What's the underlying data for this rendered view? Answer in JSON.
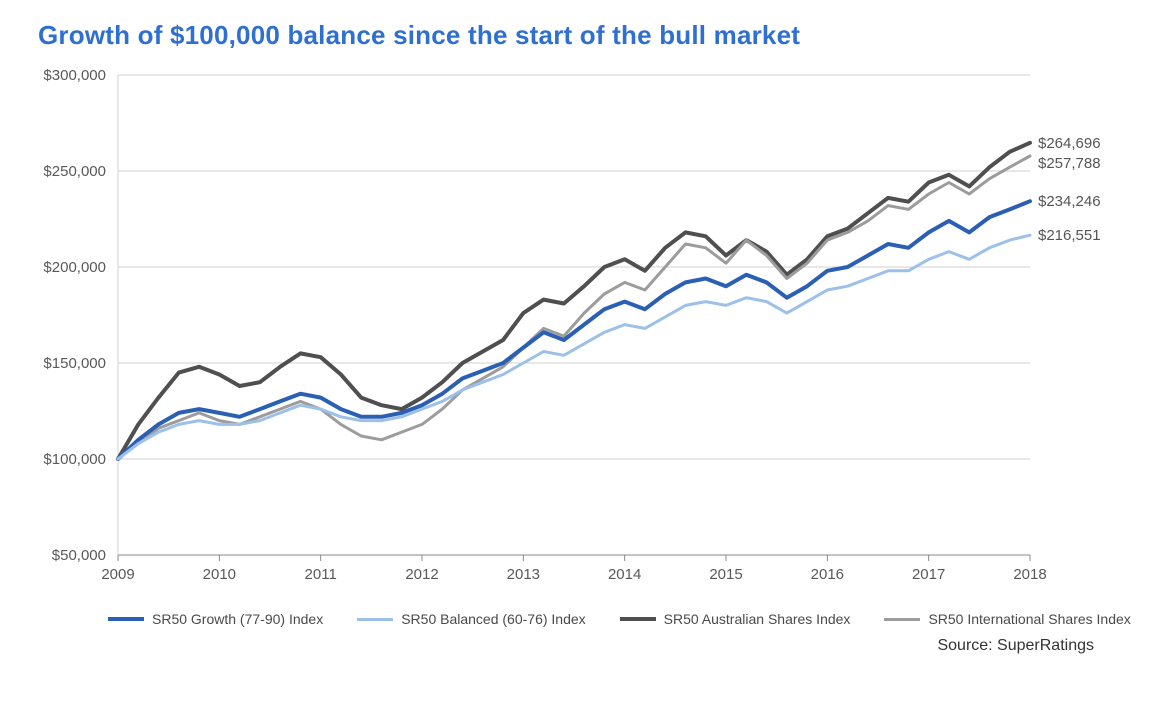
{
  "title": "Growth of $100,000 balance since the start of the bull market",
  "title_color": "#2f6fd1",
  "title_fontsize": 26,
  "source": "Source: SuperRatings",
  "chart": {
    "type": "line",
    "background_color": "#ffffff",
    "grid_color": "#d0d0d0",
    "axis_line_color": "#888888",
    "x": {
      "years": [
        2009,
        2010,
        2011,
        2012,
        2013,
        2014,
        2015,
        2016,
        2017,
        2018
      ],
      "labels": [
        "2009",
        "2010",
        "2011",
        "2012",
        "2013",
        "2014",
        "2015",
        "2016",
        "2017",
        "2018"
      ],
      "label_fontsize": 15
    },
    "y": {
      "min": 50000,
      "max": 300000,
      "step": 50000,
      "labels": [
        "$50,000",
        "$100,000",
        "$150,000",
        "$200,000",
        "$250,000",
        "$300,000"
      ],
      "label_fontsize": 15
    },
    "line_width": 3,
    "thick_line_width": 4,
    "series": [
      {
        "id": "aus_shares",
        "name": "SR50 Australian Shares Index",
        "color": "#4f4f4f",
        "width": 4,
        "end_label": "$264,696",
        "end_value": 264696,
        "values": [
          100000,
          118000,
          132000,
          145000,
          148000,
          144000,
          138000,
          140000,
          148000,
          155000,
          153000,
          144000,
          132000,
          128000,
          126000,
          132000,
          140000,
          150000,
          156000,
          162000,
          176000,
          183000,
          181000,
          190000,
          200000,
          204000,
          198000,
          210000,
          218000,
          216000,
          206000,
          214000,
          208000,
          196000,
          204000,
          216000,
          220000,
          228000,
          236000,
          234000,
          244000,
          248000,
          242000,
          252000,
          260000,
          264696
        ]
      },
      {
        "id": "intl_shares",
        "name": "SR50 International Shares Index",
        "color": "#9c9c9c",
        "width": 3,
        "end_label": "$257,788",
        "end_value": 257788,
        "values": [
          100000,
          108000,
          116000,
          120000,
          124000,
          120000,
          118000,
          122000,
          126000,
          130000,
          126000,
          118000,
          112000,
          110000,
          114000,
          118000,
          126000,
          136000,
          142000,
          148000,
          158000,
          168000,
          164000,
          176000,
          186000,
          192000,
          188000,
          200000,
          212000,
          210000,
          202000,
          214000,
          206000,
          194000,
          202000,
          214000,
          218000,
          224000,
          232000,
          230000,
          238000,
          244000,
          238000,
          246000,
          252000,
          257788
        ]
      },
      {
        "id": "growth",
        "name": "SR50 Growth (77-90) Index",
        "color": "#2b5fb4",
        "width": 4,
        "end_label": "$234,246",
        "end_value": 234246,
        "values": [
          100000,
          110000,
          118000,
          124000,
          126000,
          124000,
          122000,
          126000,
          130000,
          134000,
          132000,
          126000,
          122000,
          122000,
          124000,
          128000,
          134000,
          142000,
          146000,
          150000,
          158000,
          166000,
          162000,
          170000,
          178000,
          182000,
          178000,
          186000,
          192000,
          194000,
          190000,
          196000,
          192000,
          184000,
          190000,
          198000,
          200000,
          206000,
          212000,
          210000,
          218000,
          224000,
          218000,
          226000,
          230000,
          234246
        ]
      },
      {
        "id": "balanced",
        "name": "SR50 Balanced (60-76) Index",
        "color": "#9cc0e8",
        "width": 3,
        "end_label": "$216,551",
        "end_value": 216551,
        "values": [
          100000,
          108000,
          114000,
          118000,
          120000,
          118000,
          118000,
          120000,
          124000,
          128000,
          126000,
          122000,
          120000,
          120000,
          122000,
          126000,
          130000,
          136000,
          140000,
          144000,
          150000,
          156000,
          154000,
          160000,
          166000,
          170000,
          168000,
          174000,
          180000,
          182000,
          180000,
          184000,
          182000,
          176000,
          182000,
          188000,
          190000,
          194000,
          198000,
          198000,
          204000,
          208000,
          204000,
          210000,
          214000,
          216551
        ]
      }
    ],
    "legend": [
      {
        "color": "#2b5fb4",
        "label": "SR50 Growth (77-90) Index",
        "w": 4
      },
      {
        "color": "#9cc0e8",
        "label": "SR50 Balanced (60-76) Index",
        "w": 3
      },
      {
        "color": "#4f4f4f",
        "label": "SR50 Australian Shares Index",
        "w": 4
      },
      {
        "color": "#9c9c9c",
        "label": "SR50 International Shares Index",
        "w": 3
      }
    ]
  }
}
